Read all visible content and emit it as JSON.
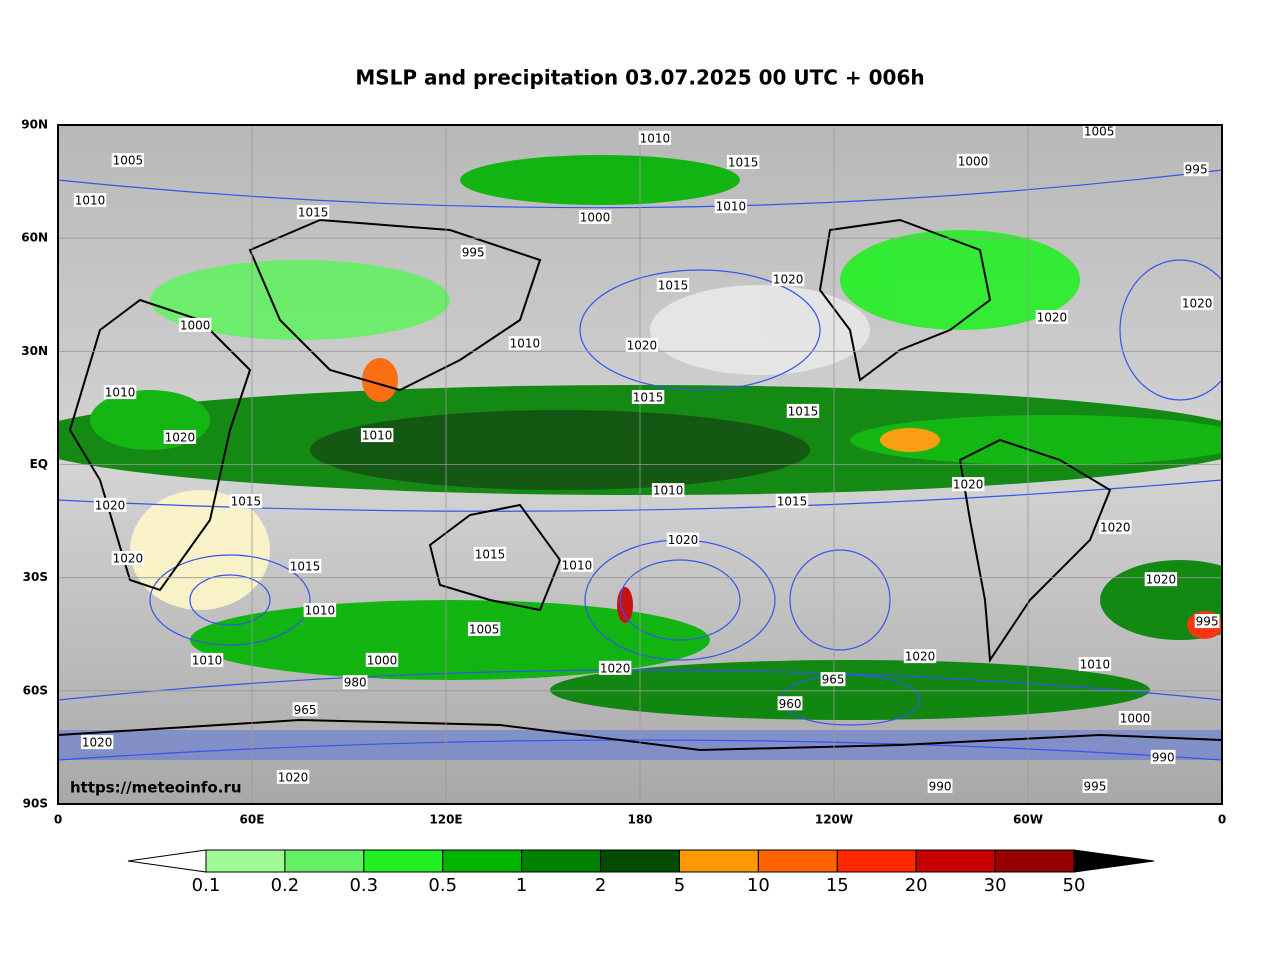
{
  "map": {
    "title": "MSLP and precipitation 03.07.2025 00 UTC + 006h",
    "watermark": "https://meteoinfo.ru",
    "xlim": [
      0,
      360
    ],
    "ylim": [
      -90,
      90
    ],
    "xticks": [
      {
        "value": 0,
        "label": "0"
      },
      {
        "value": 60,
        "label": "60E"
      },
      {
        "value": 120,
        "label": "120E"
      },
      180,
      {
        "value": 240,
        "label": "120W"
      },
      {
        "value": 300,
        "label": "60W"
      },
      {
        "value": 360,
        "label": "0"
      }
    ],
    "yticks": [
      {
        "value": 90,
        "label": "90N"
      },
      {
        "value": 60,
        "label": "60N"
      },
      {
        "value": 30,
        "label": "30N"
      },
      {
        "value": 0,
        "label": "EQ"
      },
      {
        "value": -30,
        "label": "30S"
      },
      {
        "value": -60,
        "label": "60S"
      },
      {
        "value": -90,
        "label": "90S"
      }
    ],
    "grid": true,
    "isobar_color": "#3355ee",
    "isobar_labels": [
      {
        "lon": 184.6,
        "lat": 86.6,
        "value": 1010
      },
      {
        "lon": 322,
        "lat": 88.4,
        "value": 1005
      },
      {
        "lon": 211.9,
        "lat": 80.2,
        "value": 1015
      },
      {
        "lon": 283,
        "lat": 80.5,
        "value": 1000
      },
      {
        "lon": 352,
        "lat": 78.3,
        "value": 995
      },
      {
        "lon": 21.6,
        "lat": 80.7,
        "value": 1005
      },
      {
        "lon": 9.9,
        "lat": 70.1,
        "value": 1010
      },
      {
        "lon": 78.9,
        "lat": 66.9,
        "value": 1015
      },
      {
        "lon": 128.4,
        "lat": 56.3,
        "value": 995
      },
      {
        "lon": 166.1,
        "lat": 65.6,
        "value": 1000
      },
      {
        "lon": 208.1,
        "lat": 68.5,
        "value": 1010
      },
      {
        "lon": 225.8,
        "lat": 49.2,
        "value": 1020
      },
      {
        "lon": 190.2,
        "lat": 47.6,
        "value": 1015
      },
      {
        "lon": 307.4,
        "lat": 39.1,
        "value": 1020
      },
      {
        "lon": 352.3,
        "lat": 42.8,
        "value": 1020
      },
      {
        "lon": 180.6,
        "lat": 31.7,
        "value": 1020
      },
      {
        "lon": 144.4,
        "lat": 32.2,
        "value": 1010
      },
      {
        "lon": 182.5,
        "lat": 17.9,
        "value": 1015
      },
      {
        "lon": 230.4,
        "lat": 14.2,
        "value": 1015
      },
      {
        "lon": 42.4,
        "lat": 37,
        "value": 1000
      },
      {
        "lon": 19.2,
        "lat": 19.2,
        "value": 1010
      },
      {
        "lon": 37.7,
        "lat": 7.3,
        "value": 1020
      },
      {
        "lon": 58.1,
        "lat": -9.7,
        "value": 1015
      },
      {
        "lon": 16.1,
        "lat": -10.7,
        "value": 1020
      },
      {
        "lon": 98.7,
        "lat": 7.8,
        "value": 1010
      },
      {
        "lon": 188.7,
        "lat": -6.8,
        "value": 1010
      },
      {
        "lon": 227,
        "lat": -9.7,
        "value": 1015
      },
      {
        "lon": 281.5,
        "lat": -5.2,
        "value": 1020
      },
      {
        "lon": 327,
        "lat": -16.6,
        "value": 1020
      },
      {
        "lon": 193.3,
        "lat": -19.9,
        "value": 1020
      },
      {
        "lon": 133.6,
        "lat": -23.7,
        "value": 1015
      },
      {
        "lon": 21.6,
        "lat": -24.8,
        "value": 1020
      },
      {
        "lon": 76.4,
        "lat": -26.9,
        "value": 1015
      },
      {
        "lon": 160.5,
        "lat": -26.6,
        "value": 1010
      },
      {
        "lon": 341.1,
        "lat": -30.4,
        "value": 1020
      },
      {
        "lon": 81,
        "lat": -38.6,
        "value": 1010
      },
      {
        "lon": 131.8,
        "lat": -43.6,
        "value": 1005
      },
      {
        "lon": 172.3,
        "lat": -53.9,
        "value": 1020
      },
      {
        "lon": 266.6,
        "lat": -50.8,
        "value": 1020
      },
      {
        "lon": 320.7,
        "lat": -52.9,
        "value": 1010
      },
      {
        "lon": 239.7,
        "lat": -56.9,
        "value": 965
      },
      {
        "lon": 226.4,
        "lat": -63.3,
        "value": 960
      },
      {
        "lon": 76.4,
        "lat": -64.9,
        "value": 965
      },
      {
        "lon": 91.9,
        "lat": -57.7,
        "value": 980
      },
      {
        "lon": 100.2,
        "lat": -51.8,
        "value": 1000
      },
      {
        "lon": 46.1,
        "lat": -51.8,
        "value": 1010
      },
      {
        "lon": 12.1,
        "lat": -73.6,
        "value": 1020
      },
      {
        "lon": 72.7,
        "lat": -82.8,
        "value": 1020
      },
      {
        "lon": 341.8,
        "lat": -77.5,
        "value": 990
      },
      {
        "lon": 320.7,
        "lat": -85.2,
        "value": 995
      },
      {
        "lon": 272.8,
        "lat": -85.2,
        "value": 990
      },
      {
        "lon": 355.4,
        "lat": -41.5,
        "value": 995
      },
      {
        "lon": 333.1,
        "lat": -67.2,
        "value": 1000
      }
    ],
    "colorbar": {
      "levels": [
        0.1,
        0.2,
        0.3,
        0.5,
        1,
        2,
        5,
        10,
        15,
        20,
        30,
        50
      ],
      "colors": [
        "#a0fa96",
        "#64f064",
        "#22f022",
        "#00b400",
        "#008200",
        "#004b00",
        "#ff9900",
        "#ff6400",
        "#ff2800",
        "#c80000",
        "#960000"
      ],
      "under_color": "#ffffff",
      "over_color": "#000000"
    }
  }
}
